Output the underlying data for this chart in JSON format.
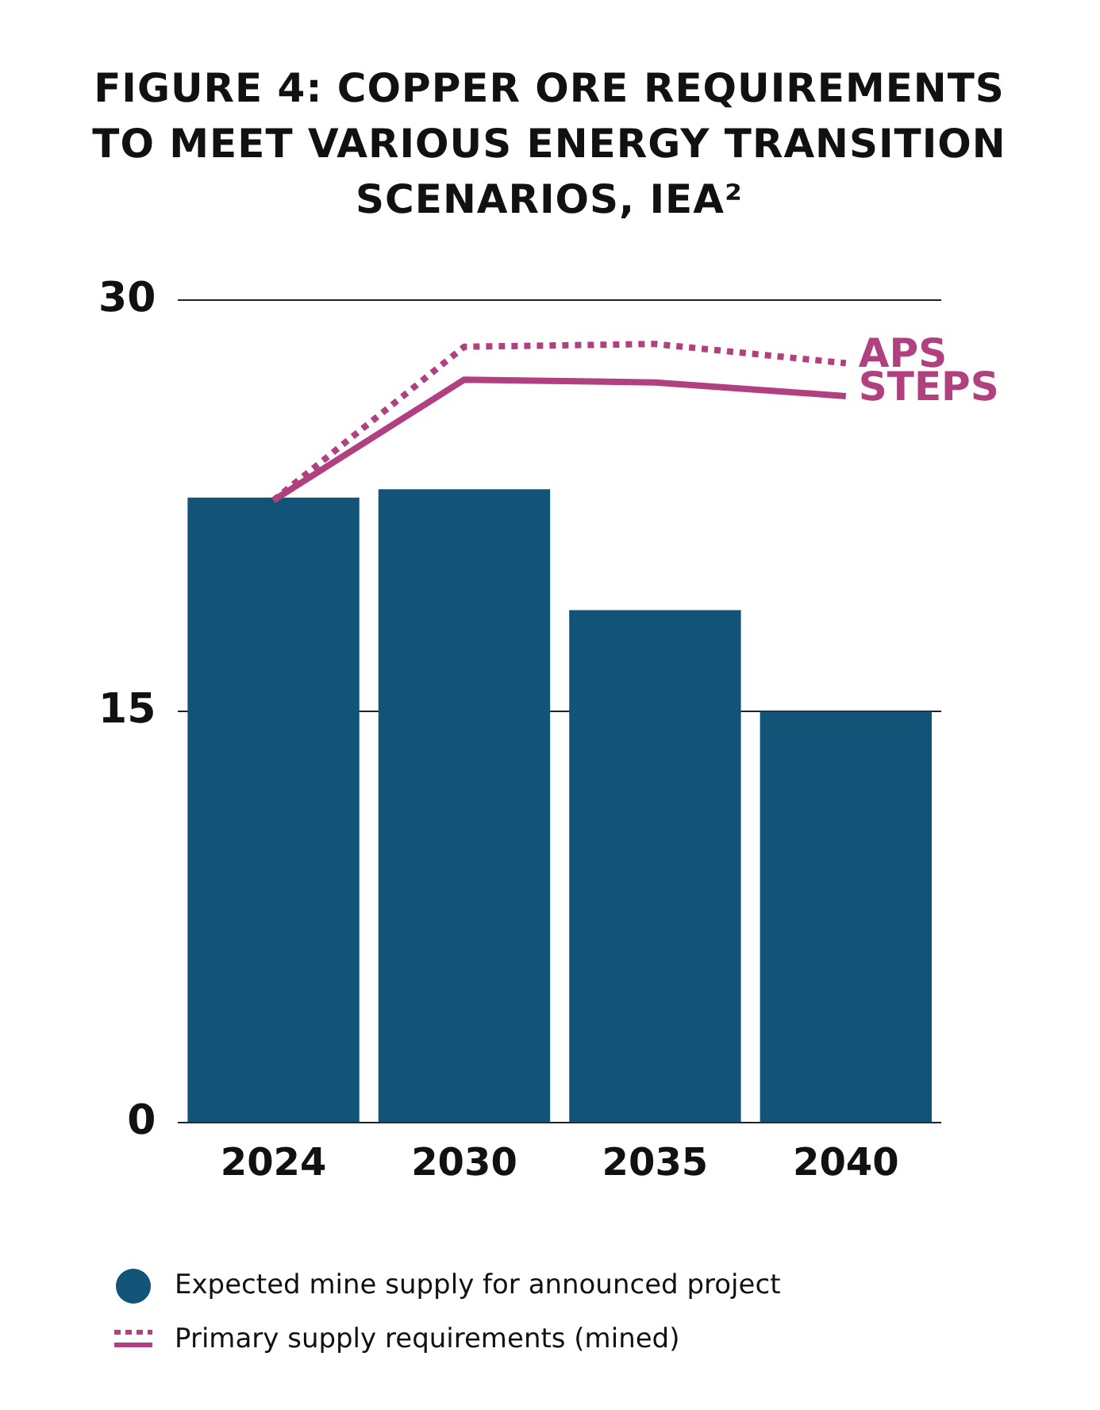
{
  "chart_data": {
    "type": "bar",
    "title": "FIGURE 4: COPPER ORE REQUIREMENTS TO MEET VARIOUS ENERGY TRANSITION SCENARIOS, IEA²",
    "categories": [
      "2024",
      "2030",
      "2035",
      "2040"
    ],
    "series": [
      {
        "name": "Expected mine supply for announced project",
        "color": "#115478",
        "values": [
          22.8,
          23.1,
          18.7,
          15.0
        ]
      },
      {
        "name": "APS",
        "type": "line",
        "color": "#b0407f",
        "line_style": "dotted",
        "values": [
          22.7,
          28.3,
          28.4,
          27.7
        ]
      },
      {
        "name": "STEPS",
        "type": "line",
        "color": "#b0407f",
        "line_style": "solid",
        "values": [
          22.7,
          27.1,
          27.0,
          26.5
        ]
      }
    ],
    "annotations": [
      "Primary supply requirements (mined)"
    ],
    "ylim": [
      0,
      30
    ],
    "yticks": [
      0,
      15,
      30
    ],
    "grid": "y",
    "legend": "bottom",
    "marker": "none"
  }
}
